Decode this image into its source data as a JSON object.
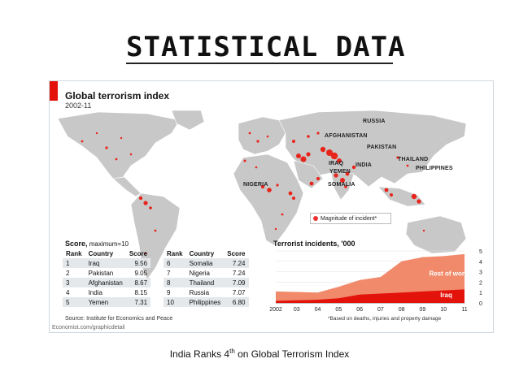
{
  "slide": {
    "title": "Statistical Data",
    "caption_pre": "India Ranks 4",
    "caption_sup": "th",
    "caption_post": " on Global Terrorism Index"
  },
  "figure": {
    "title": "Global terrorism index",
    "subtitle": "2002-11",
    "map_labels": [
      "RUSSIA",
      "AFGHANISTAN",
      "PAKISTAN",
      "IRAQ",
      "INDIA",
      "YEMEN",
      "THAILAND",
      "PHILIPPINES",
      "NIGERIA",
      "SOMALIA"
    ],
    "legend": "Magnitude of incident*",
    "score_title": "Score,",
    "score_title_suffix": " maximum=10",
    "score_columns": [
      "Rank",
      "Country",
      "Score"
    ],
    "scores_left": [
      {
        "rank": "1",
        "country": "Iraq",
        "score": "9.56"
      },
      {
        "rank": "2",
        "country": "Pakistan",
        "score": "9.05"
      },
      {
        "rank": "3",
        "country": "Afghanistan",
        "score": "8.67"
      },
      {
        "rank": "4",
        "country": "India",
        "score": "8.15"
      },
      {
        "rank": "5",
        "country": "Yemen",
        "score": "7.31"
      }
    ],
    "scores_right": [
      {
        "rank": "6",
        "country": "Somalia",
        "score": "7.24"
      },
      {
        "rank": "7",
        "country": "Nigeria",
        "score": "7.24"
      },
      {
        "rank": "8",
        "country": "Thailand",
        "score": "7.09"
      },
      {
        "rank": "9",
        "country": "Russia",
        "score": "7.07"
      },
      {
        "rank": "10",
        "country": "Philippines",
        "score": "6.80"
      }
    ],
    "source": "Source: Institute for Economics and Peace",
    "url": "Economist.com/graphicdetail",
    "colors": {
      "accent": "#e3120b",
      "rest": "#f08a6a",
      "iraq": "#e3120b",
      "land": "#c8c8c8",
      "ocean": "#ffffff"
    }
  },
  "chart_data": {
    "type": "area",
    "title": "Terrorist incidents, '000",
    "x": [
      "2002",
      "03",
      "04",
      "05",
      "06",
      "07",
      "08",
      "09",
      "10",
      "11"
    ],
    "series": [
      {
        "name": "Iraq",
        "values": [
          0.2,
          0.25,
          0.3,
          0.45,
          0.8,
          0.9,
          1.0,
          1.1,
          1.2,
          1.3
        ]
      },
      {
        "name": "Rest of world",
        "values": [
          0.9,
          0.8,
          0.7,
          1.1,
          1.4,
          1.6,
          3.0,
          3.3,
          3.3,
          3.4
        ]
      }
    ],
    "ylim": [
      0,
      5
    ],
    "yticks": [
      "0",
      "1",
      "2",
      "3",
      "4",
      "5"
    ],
    "y_axis_side": "right",
    "footnote": "*Based on deaths, injuries and property damage"
  }
}
